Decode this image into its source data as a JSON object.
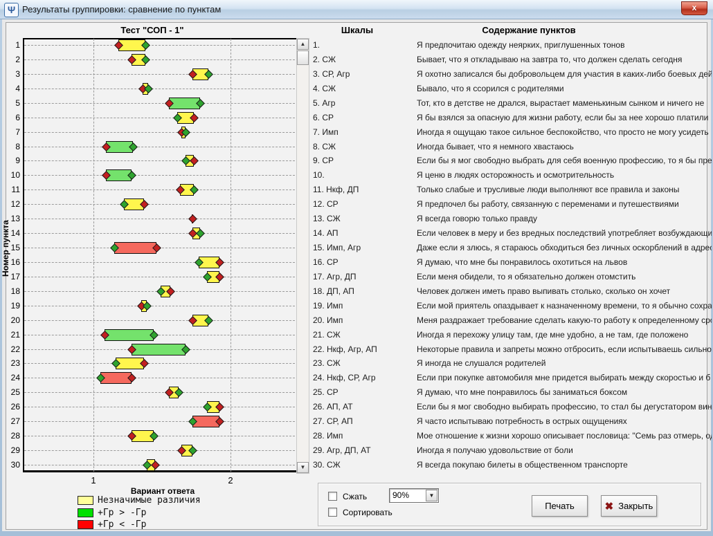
{
  "window": {
    "title": "Результаты группировки: сравнение по пунктам",
    "icons": {
      "app_icon_glyph": "Ψ",
      "close_glyph": "x",
      "scroll_up": "▲",
      "scroll_down": "▼",
      "combo_arrow": "▼",
      "close_button_x": "✖"
    }
  },
  "headers": {
    "chart_title": "Тест \"СОП - 1\"",
    "scales": "Шкалы",
    "content": "Содержание пунктов"
  },
  "chart_data": {
    "type": "bar",
    "orientation": "horizontal-range",
    "title": "Тест \"СОП - 1\"",
    "xlabel": "Вариант ответа",
    "ylabel": "Номер пункта",
    "xlim": [
      0.5,
      2.5
    ],
    "xticks": [
      1,
      2
    ],
    "grid": "dashed",
    "palette": {
      "yellow": "#FFF64D",
      "green": "#74E26C",
      "red": "#F5695E"
    },
    "marker_colors": {
      "red": "#C22020",
      "green": "#2EA32E"
    },
    "legend": [
      {
        "label": "Незначимые различия",
        "color": "#FFFF99"
      },
      {
        "label": "+Гр > -Гр",
        "color": "#00E000"
      },
      {
        "label": "+Гр < -Гр",
        "color": "#FF0000"
      }
    ],
    "items": [
      {
        "n": 1,
        "lo": 1.18,
        "hi": 1.38,
        "bar": "yellow",
        "lo_marker": "red",
        "hi_marker": "green"
      },
      {
        "n": 2,
        "lo": 1.28,
        "hi": 1.38,
        "bar": "yellow",
        "lo_marker": "red",
        "hi_marker": "green"
      },
      {
        "n": 3,
        "lo": 1.72,
        "hi": 1.84,
        "bar": "yellow",
        "lo_marker": "red",
        "hi_marker": "green"
      },
      {
        "n": 4,
        "lo": 1.36,
        "hi": 1.4,
        "bar": "yellow",
        "lo_marker": "red",
        "hi_marker": "green"
      },
      {
        "n": 5,
        "lo": 1.55,
        "hi": 1.78,
        "bar": "green",
        "lo_marker": "red",
        "hi_marker": "green"
      },
      {
        "n": 6,
        "lo": 1.61,
        "hi": 1.73,
        "bar": "yellow",
        "lo_marker": "green",
        "hi_marker": "red"
      },
      {
        "n": 7,
        "lo": 1.64,
        "hi": 1.67,
        "bar": "yellow",
        "lo_marker": "red",
        "hi_marker": "green"
      },
      {
        "n": 8,
        "lo": 1.09,
        "hi": 1.29,
        "bar": "green",
        "lo_marker": "red",
        "hi_marker": "green"
      },
      {
        "n": 9,
        "lo": 1.67,
        "hi": 1.73,
        "bar": "yellow",
        "lo_marker": "green",
        "hi_marker": "red"
      },
      {
        "n": 10,
        "lo": 1.09,
        "hi": 1.28,
        "bar": "green",
        "lo_marker": "red",
        "hi_marker": "green"
      },
      {
        "n": 11,
        "lo": 1.63,
        "hi": 1.73,
        "bar": "yellow",
        "lo_marker": "red",
        "hi_marker": "green"
      },
      {
        "n": 12,
        "lo": 1.22,
        "hi": 1.37,
        "bar": "yellow",
        "lo_marker": "green",
        "hi_marker": "red"
      },
      {
        "n": 13,
        "lo": 1.72,
        "hi": 1.72,
        "bar": "none",
        "lo_marker": "red",
        "hi_marker": null
      },
      {
        "n": 14,
        "lo": 1.72,
        "hi": 1.78,
        "bar": "yellow",
        "lo_marker": "red",
        "hi_marker": "green"
      },
      {
        "n": 15,
        "lo": 1.15,
        "hi": 1.46,
        "bar": "red",
        "lo_marker": "green",
        "hi_marker": "red"
      },
      {
        "n": 16,
        "lo": 1.77,
        "hi": 1.92,
        "bar": "yellow",
        "lo_marker": "green",
        "hi_marker": "red"
      },
      {
        "n": 17,
        "lo": 1.83,
        "hi": 1.92,
        "bar": "yellow",
        "lo_marker": "green",
        "hi_marker": "red"
      },
      {
        "n": 18,
        "lo": 1.49,
        "hi": 1.56,
        "bar": "yellow",
        "lo_marker": "green",
        "hi_marker": "red"
      },
      {
        "n": 19,
        "lo": 1.35,
        "hi": 1.39,
        "bar": "yellow",
        "lo_marker": "red",
        "hi_marker": "green"
      },
      {
        "n": 20,
        "lo": 1.72,
        "hi": 1.84,
        "bar": "yellow",
        "lo_marker": "red",
        "hi_marker": "green"
      },
      {
        "n": 21,
        "lo": 1.08,
        "hi": 1.44,
        "bar": "green",
        "lo_marker": "red",
        "hi_marker": "green"
      },
      {
        "n": 22,
        "lo": 1.28,
        "hi": 1.67,
        "bar": "green",
        "lo_marker": "red",
        "hi_marker": "green"
      },
      {
        "n": 23,
        "lo": 1.16,
        "hi": 1.37,
        "bar": "yellow",
        "lo_marker": "green",
        "hi_marker": "red"
      },
      {
        "n": 24,
        "lo": 1.05,
        "hi": 1.28,
        "bar": "red",
        "lo_marker": "green",
        "hi_marker": "red"
      },
      {
        "n": 25,
        "lo": 1.55,
        "hi": 1.62,
        "bar": "yellow",
        "lo_marker": "red",
        "hi_marker": "green"
      },
      {
        "n": 26,
        "lo": 1.83,
        "hi": 1.92,
        "bar": "yellow",
        "lo_marker": "green",
        "hi_marker": "red"
      },
      {
        "n": 27,
        "lo": 1.72,
        "hi": 1.92,
        "bar": "red",
        "lo_marker": "green",
        "hi_marker": "red"
      },
      {
        "n": 28,
        "lo": 1.28,
        "hi": 1.44,
        "bar": "yellow",
        "lo_marker": "red",
        "hi_marker": "green"
      },
      {
        "n": 29,
        "lo": 1.64,
        "hi": 1.72,
        "bar": "yellow",
        "lo_marker": "red",
        "hi_marker": "green"
      },
      {
        "n": 30,
        "lo": 1.39,
        "hi": 1.45,
        "bar": "yellow",
        "lo_marker": "green",
        "hi_marker": "red"
      }
    ]
  },
  "rows": [
    {
      "num": 1,
      "scales": "",
      "text": "Я предпочитаю одежду неярких, приглушенных тонов"
    },
    {
      "num": 2,
      "scales": "СЖ",
      "text": "Бывает, что я откладываю на завтра то, что должен сделать сегодня"
    },
    {
      "num": 3,
      "scales": "СР, Агр",
      "text": "Я охотно записался бы добровольцем для участия в каких-либо боевых дейс"
    },
    {
      "num": 4,
      "scales": "СЖ",
      "text": "Бывало, что я ссорился с родителями"
    },
    {
      "num": 5,
      "scales": "Агр",
      "text": "Тот, кто в детстве не дрался, вырастает маменькиным сынком и ничего не"
    },
    {
      "num": 6,
      "scales": "СР",
      "text": "Я бы взялся за опасную для жизни работу, если бы за нее хорошо платили"
    },
    {
      "num": 7,
      "scales": "Имп",
      "text": "Иногда я ощущаю такое сильное беспокойство, что просто не могу усидеть"
    },
    {
      "num": 8,
      "scales": "СЖ",
      "text": "Иногда бывает, что я немного хвастаюсь"
    },
    {
      "num": 9,
      "scales": "СР",
      "text": "Если бы я мог свободно выбрать для себя военную профессию, то я бы пред"
    },
    {
      "num": 10,
      "scales": "",
      "text": "Я ценю в людях осторожность и осмотрительность"
    },
    {
      "num": 11,
      "scales": "Нкф, ДП",
      "text": "Только слабые и трусливые люди выполняют все правила и законы"
    },
    {
      "num": 12,
      "scales": "СР",
      "text": "Я предпочел бы работу, связанную с переменами и путешествиями"
    },
    {
      "num": 13,
      "scales": "СЖ",
      "text": "Я всегда говорю только правду"
    },
    {
      "num": 14,
      "scales": "АП",
      "text": "Если человек в меру и без вредных последствий употребляет возбуждающи"
    },
    {
      "num": 15,
      "scales": "Имп, Агр",
      "text": "Даже если я злюсь, я стараюсь обходиться без личных оскорблений в адрес"
    },
    {
      "num": 16,
      "scales": "СР",
      "text": "Я думаю, что мне бы понравилось охотиться на львов"
    },
    {
      "num": 17,
      "scales": "Агр, ДП",
      "text": "Если меня обидели, то я обязательно должен отомстить"
    },
    {
      "num": 18,
      "scales": "ДП, АП",
      "text": "Человек должен иметь право выпивать столько, сколько он хочет"
    },
    {
      "num": 19,
      "scales": "Имп",
      "text": "Если мой приятель опаздывает к назначенному времени, то я обычно сохра"
    },
    {
      "num": 20,
      "scales": "Имп",
      "text": "Меня раздражает требование сделать какую-то работу к определенному сро"
    },
    {
      "num": 21,
      "scales": "СЖ",
      "text": "Иногда я перехожу улицу там, где мне удобно, а не там, где положено"
    },
    {
      "num": 22,
      "scales": "Нкф, Агр, АП",
      "text": "Некоторые правила и запреты можно отбросить, если испытываешь сильно"
    },
    {
      "num": 23,
      "scales": "СЖ",
      "text": "Я иногда не слушался родителей"
    },
    {
      "num": 24,
      "scales": "Нкф, СР, Агр",
      "text": "Если при покупке автомобиля мне придется выбирать между скоростью и б"
    },
    {
      "num": 25,
      "scales": "СР",
      "text": "Я думаю, что мне понравилось бы заниматься боксом"
    },
    {
      "num": 26,
      "scales": "АП, АТ",
      "text": "Если бы я мог свободно выбирать профессию, то стал бы дегустатором вин"
    },
    {
      "num": 27,
      "scales": "СР, АП",
      "text": "Я часто испытываю потребность в острых ощущениях"
    },
    {
      "num": 28,
      "scales": "Имп",
      "text": "Мое отношение к жизни хорошо описывает пословица: \"Семь раз отмерь, од"
    },
    {
      "num": 29,
      "scales": "Агр, ДП, АТ",
      "text": "Иногда я получаю удовольствие от боли"
    },
    {
      "num": 30,
      "scales": "СЖ",
      "text": "Я всегда покупаю билеты в общественном транспорте"
    }
  ],
  "controls": {
    "compress_label": "Сжать",
    "sort_label": "Сортировать",
    "zoom_value": "90%",
    "print_label": "Печать",
    "close_label": "Закрыть"
  }
}
